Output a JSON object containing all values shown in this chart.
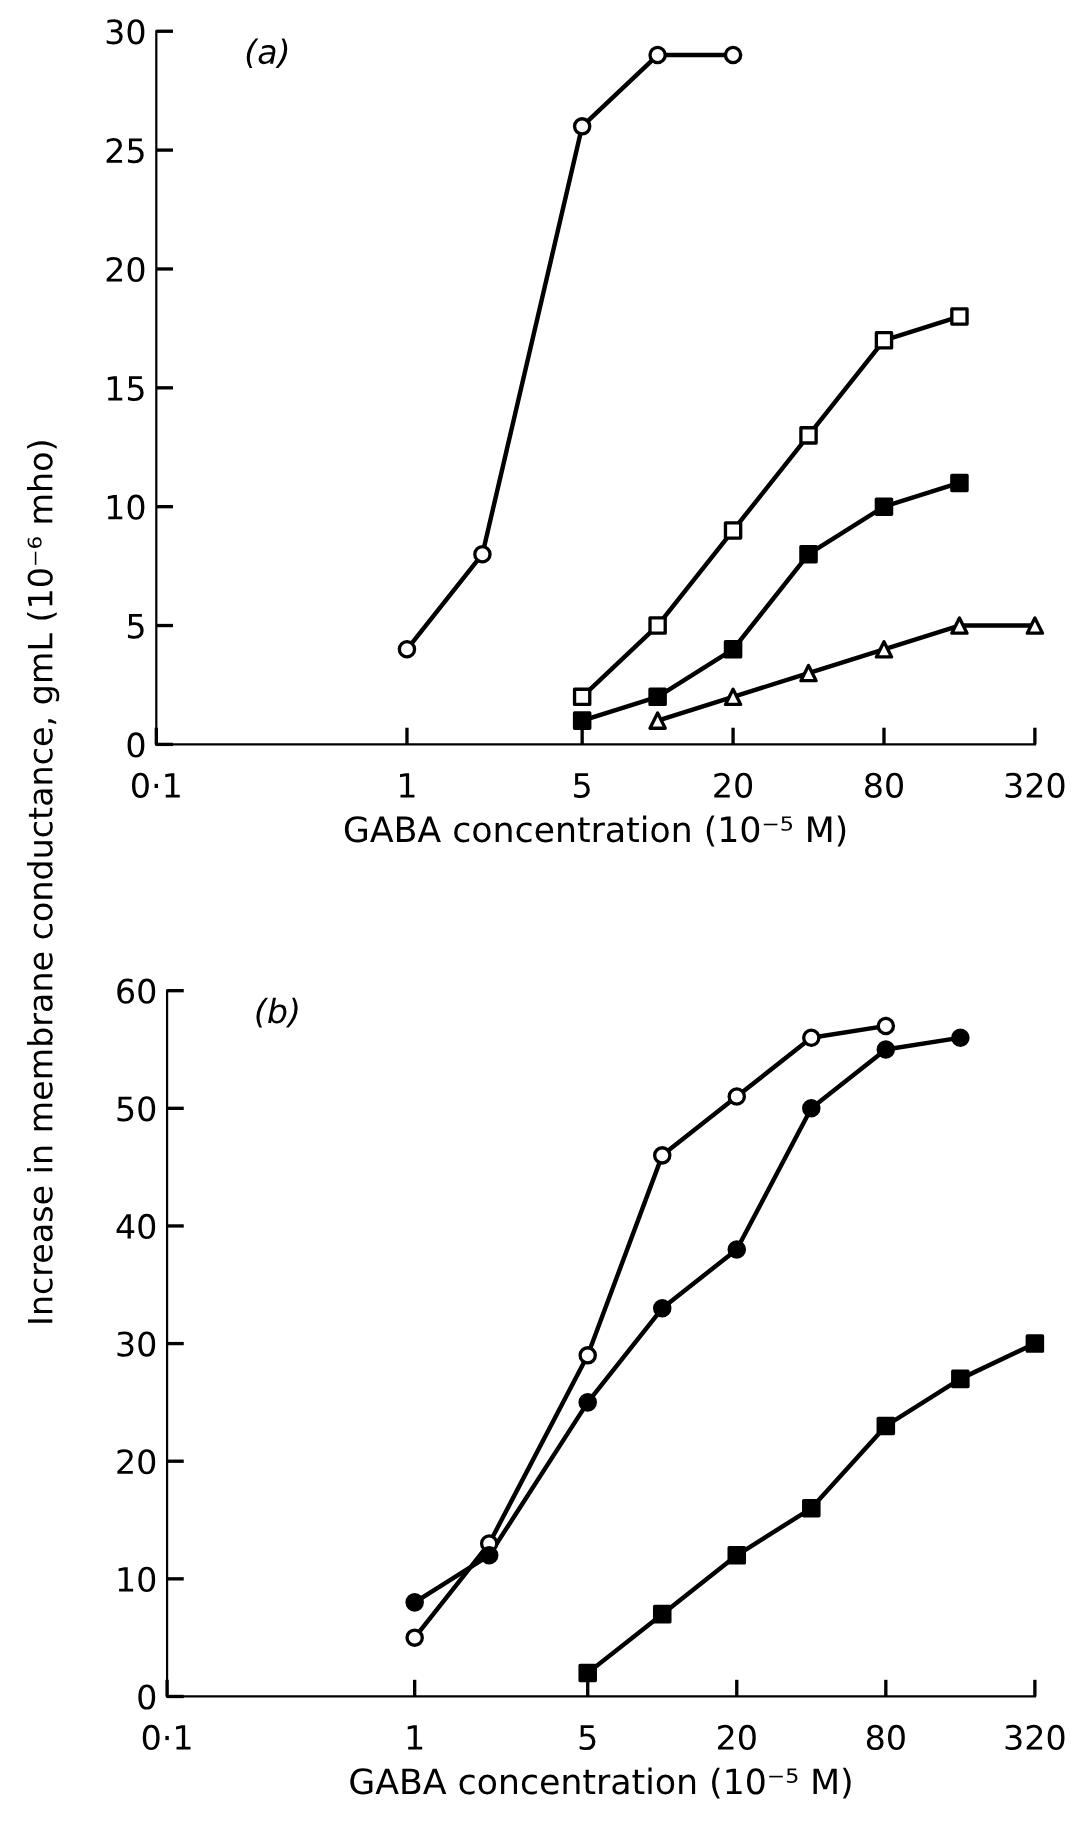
{
  "chart_data": [
    {
      "type": "line",
      "ylabel": "Increase in membrane conductance, gmL (10⁻⁶ mho)",
      "xlabel": "GABA concentration (10⁻⁵ M)",
      "annotations": [
        "(a)"
      ],
      "log": "x",
      "xlim": [
        0.1,
        320
      ],
      "xticks": [
        {
          "value": 0.1,
          "label": "0·1"
        },
        1,
        5,
        20,
        80,
        320
      ],
      "ylim": [
        0,
        30
      ],
      "yticks": [
        0,
        5,
        10,
        15,
        20,
        25,
        30
      ],
      "grid": false,
      "legend": false,
      "line_style": "solid",
      "series": [
        {
          "color": "#000000",
          "marker": "circle",
          "colors": [
            "#ffffff",
            "#ffffff",
            "#ffffff",
            "#ffffff",
            "#ffffff"
          ],
          "x": [
            1,
            2,
            5,
            10,
            20
          ],
          "values": [
            4,
            8,
            26,
            29,
            29
          ]
        },
        {
          "color": "#000000",
          "marker": "square",
          "colors": [
            "#ffffff",
            "#ffffff",
            "#ffffff",
            "#ffffff",
            "#ffffff",
            "#ffffff"
          ],
          "x": [
            5,
            10,
            20,
            40,
            80,
            160
          ],
          "values": [
            2,
            5,
            9,
            13,
            17,
            18
          ]
        },
        {
          "color": "#000000",
          "marker": "square",
          "x": [
            5,
            10,
            20,
            40,
            80,
            160
          ],
          "values": [
            1,
            2,
            4,
            8,
            10,
            11
          ]
        },
        {
          "color": "#000000",
          "marker": "triangle",
          "colors": [
            "#ffffff",
            "#ffffff",
            "#ffffff",
            "#ffffff",
            "#ffffff",
            "#ffffff"
          ],
          "x": [
            10,
            20,
            40,
            80,
            160,
            320
          ],
          "values": [
            1,
            2,
            3,
            4,
            5,
            5
          ]
        }
      ]
    },
    {
      "type": "line",
      "xlabel": "GABA concentration (10⁻⁵ M)",
      "annotations": [
        "(b)"
      ],
      "log": "x",
      "xlim": [
        0.1,
        320
      ],
      "xticks": [
        {
          "value": 0.1,
          "label": "0·1"
        },
        1,
        5,
        20,
        80,
        320
      ],
      "ylim": [
        0,
        60
      ],
      "yticks": [
        0,
        10,
        20,
        30,
        40,
        50,
        60
      ],
      "grid": false,
      "legend": false,
      "line_style": "solid",
      "series": [
        {
          "color": "#000000",
          "marker": "circle",
          "colors": [
            "#ffffff",
            "#ffffff",
            "#ffffff",
            "#ffffff",
            "#ffffff",
            "#ffffff",
            "#ffffff"
          ],
          "x": [
            1,
            2,
            5,
            10,
            20,
            40,
            80
          ],
          "values": [
            5,
            13,
            29,
            46,
            51,
            56,
            57
          ]
        },
        {
          "color": "#000000",
          "marker": "circle",
          "x": [
            1,
            2,
            5,
            10,
            20,
            40,
            80,
            160
          ],
          "values": [
            8,
            12,
            25,
            33,
            38,
            50,
            55,
            56
          ]
        },
        {
          "color": "#000000",
          "marker": "square",
          "x": [
            5,
            10,
            20,
            40,
            80,
            160,
            320
          ],
          "values": [
            2,
            7,
            12,
            16,
            23,
            27,
            30
          ]
        }
      ]
    }
  ]
}
